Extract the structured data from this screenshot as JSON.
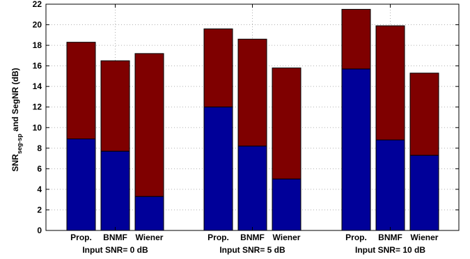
{
  "chart_data": {
    "type": "bar",
    "stacked": true,
    "ylabel": {
      "main": "SNR",
      "subscript": "seg-sp",
      "rest": " and SegNR (dB)"
    },
    "ylim": [
      0,
      22
    ],
    "yticks": [
      0,
      2,
      4,
      6,
      8,
      10,
      12,
      14,
      16,
      18,
      20,
      22
    ],
    "grid": true,
    "groups": [
      {
        "label": "Input SNR= 0 dB",
        "bars": [
          {
            "label": "Prop.",
            "lower": 8.9,
            "total": 18.3
          },
          {
            "label": "BNMF",
            "lower": 7.7,
            "total": 16.5
          },
          {
            "label": "Wiener",
            "lower": 3.3,
            "total": 17.2
          }
        ]
      },
      {
        "label": "Input SNR= 5 dB",
        "bars": [
          {
            "label": "Prop.",
            "lower": 12.0,
            "total": 19.6
          },
          {
            "label": "BNMF",
            "lower": 8.2,
            "total": 18.6
          },
          {
            "label": "Wiener",
            "lower": 5.0,
            "total": 15.8
          }
        ]
      },
      {
        "label": "Input SNR= 10 dB",
        "bars": [
          {
            "label": "Prop.",
            "lower": 15.7,
            "total": 21.5
          },
          {
            "label": "BNMF",
            "lower": 8.8,
            "total": 19.9
          },
          {
            "label": "Wiener",
            "lower": 7.3,
            "total": 15.3
          }
        ]
      }
    ],
    "colors": {
      "lower": "#000099",
      "upper": "#7f0000",
      "grid": "#b0b0b0",
      "axis": "#000000"
    }
  }
}
